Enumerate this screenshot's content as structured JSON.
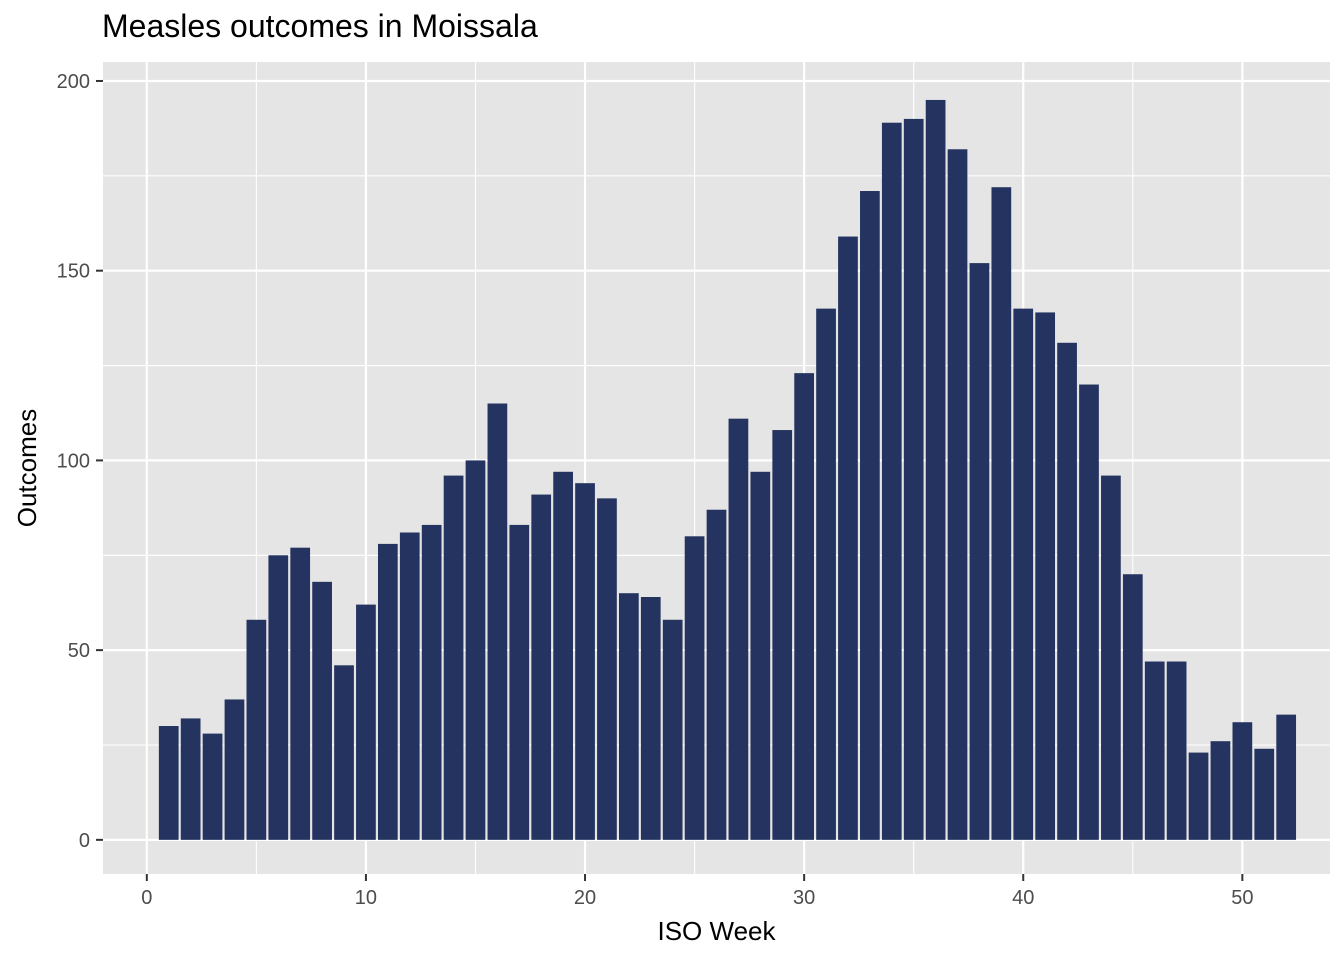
{
  "chart_data": {
    "type": "bar",
    "title": "Measles outcomes in Moissala",
    "xlabel": "ISO Week",
    "ylabel": "Outcomes",
    "x": [
      1,
      2,
      3,
      4,
      5,
      6,
      7,
      8,
      9,
      10,
      11,
      12,
      13,
      14,
      15,
      16,
      17,
      18,
      19,
      20,
      21,
      22,
      23,
      24,
      25,
      26,
      27,
      28,
      29,
      30,
      31,
      32,
      33,
      34,
      35,
      36,
      37,
      38,
      39,
      40,
      41,
      42,
      43,
      44,
      45,
      46,
      47,
      48,
      49,
      50,
      51,
      52
    ],
    "values": [
      30,
      32,
      28,
      37,
      58,
      75,
      77,
      68,
      46,
      62,
      78,
      81,
      83,
      96,
      100,
      115,
      83,
      91,
      97,
      94,
      90,
      65,
      64,
      58,
      80,
      87,
      111,
      97,
      108,
      123,
      140,
      159,
      171,
      189,
      190,
      195,
      182,
      152,
      172,
      140,
      139,
      131,
      120,
      96,
      70,
      47,
      47,
      23,
      26,
      31,
      24,
      33
    ],
    "xlim": [
      -2,
      54
    ],
    "ylim": [
      -9,
      205
    ],
    "x_ticks": [
      0,
      10,
      20,
      30,
      40,
      50
    ],
    "x_tick_labels": [
      "0",
      "10",
      "20",
      "30",
      "40",
      "50"
    ],
    "y_ticks": [
      0,
      50,
      100,
      150,
      200
    ],
    "y_tick_labels": [
      "0",
      "50",
      "100",
      "150",
      "200"
    ],
    "grid": true,
    "bar_color": "#24335f",
    "panel_background": "#e5e5e5"
  }
}
